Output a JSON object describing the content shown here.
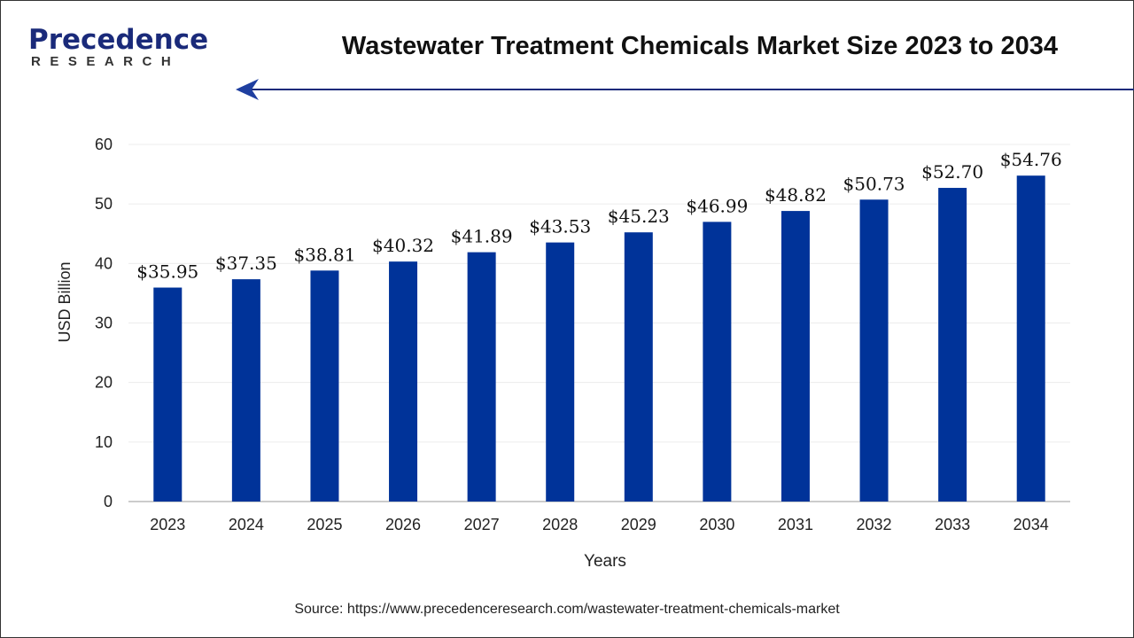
{
  "logo": {
    "line1": "Precedence",
    "line2": "RESEARCH"
  },
  "title": "Wastewater Treatment Chemicals Market Size 2023 to 2034",
  "source": "Source: https://www.precedenceresearch.com/wastewater-treatment-chemicals-market",
  "colors": {
    "bar": "#003399",
    "accent": "#1a2a7a"
  },
  "chart_data": {
    "type": "bar",
    "title": "Wastewater Treatment Chemicals Market Size 2023 to 2034",
    "xlabel": "Years",
    "ylabel": "USD Billion",
    "ylim": [
      0,
      60
    ],
    "yticks": [
      0,
      10,
      20,
      30,
      40,
      50,
      60
    ],
    "grid": true,
    "categories": [
      "2023",
      "2024",
      "2025",
      "2026",
      "2027",
      "2028",
      "2029",
      "2030",
      "2031",
      "2032",
      "2033",
      "2034"
    ],
    "values": [
      35.95,
      37.35,
      38.81,
      40.32,
      41.89,
      43.53,
      45.23,
      46.99,
      48.82,
      50.73,
      52.7,
      54.76
    ],
    "labels": [
      "$35.95",
      "$37.35",
      "$38.81",
      "$40.32",
      "$41.89",
      "$43.53",
      "$45.23",
      "$46.99",
      "$48.82",
      "$50.73",
      "$52.70",
      "$54.76"
    ]
  }
}
